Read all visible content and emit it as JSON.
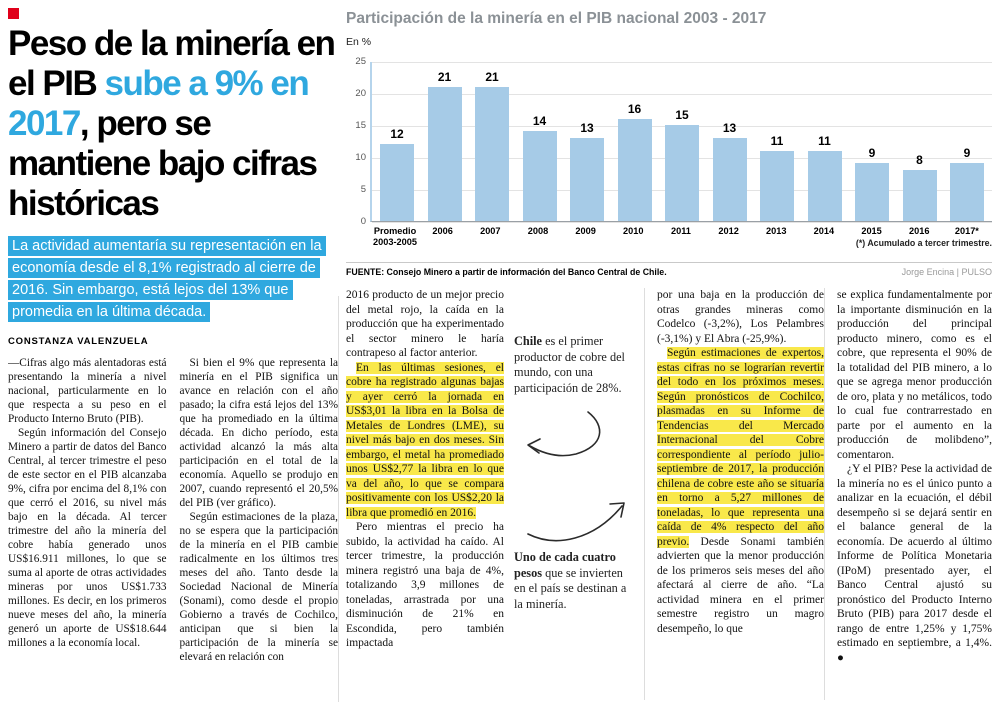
{
  "colors": {
    "accent_blue": "#2fa8df",
    "bar_blue": "#a6cbe7",
    "highlight_yellow": "#f9e84a",
    "logo_red": "#e0001a"
  },
  "headline": {
    "part1": "Peso de la minería en el PIB ",
    "part2": "sube a 9% en 2017",
    "part3": ", pero se mantiene bajo cifras históricas"
  },
  "subhead": "La actividad aumentaría su representación en la economía desde el 8,1% registrado al cierre de 2016. Sin embargo, está lejos del 13% que promedia en la última década.",
  "article": {
    "byline": "CONSTANZA VALENZUELA",
    "left_block": [
      {
        "indent": false,
        "segments": [
          {
            "text": "—Cifras algo más alentadoras está presentando la minería a nivel nacional, particularmente en lo que respecta a su peso en el Producto Interno Bruto (PIB).",
            "hl": false
          }
        ]
      },
      {
        "indent": true,
        "segments": [
          {
            "text": "Según información del Consejo Minero a partir de datos del Banco Central, al tercer trimestre el peso de este sector en el PIB alcanzaba 9%, cifra por encima del 8,1% con que cerró el 2016, su nivel más bajo en la década. Al tercer trimestre del año la minería del cobre había generado unos US$16.911 millones, lo que se suma al aporte de otras actividades mineras por unos US$1.733 millones. Es decir, en los primeros nueve meses del año, la minería generó un aporte de US$18.644 millones a la economía local.",
            "hl": false
          }
        ]
      },
      {
        "indent": true,
        "segments": [
          {
            "text": "Si bien el 9% que representa la minería en el PIB significa un avance en relación con el año pasado; la cifra está lejos del 13% que ha promediado en la última década. En dicho período, esta actividad alcanzó la más alta participación en el total de la economía. Aquello se produjo en 2007, cuando representó el 20,5% del PIB (ver gráfico).",
            "hl": false
          }
        ]
      },
      {
        "indent": true,
        "segments": [
          {
            "text": "Según estimaciones de la plaza, no se espera que la participación de la minería en el PIB cambie radicalmente en los últimos tres meses del año. Tanto desde la Sociedad Nacional de Minería (Sonami), como desde el propio Gobierno a través de Cochilco, anticipan que si bien la participación de la minería se elevará en relación con",
            "hl": false
          }
        ]
      }
    ],
    "col3": [
      {
        "indent": false,
        "segments": [
          {
            "text": "2016 producto de un mejor precio del metal rojo, la caída en la producción que ha experimentado el sector minero le haría contrapeso al factor anterior.",
            "hl": false
          }
        ]
      },
      {
        "indent": true,
        "segments": [
          {
            "text": "En las últimas sesiones, el cobre ha registrado algunas bajas y ayer cerró la jornada en US$3,01 la libra en la Bolsa de Metales de Londres (LME), su nivel más bajo en dos meses. Sin embargo, el metal ha promediado unos US$2,77 la libra en lo que va del año, lo que se compara positivamente con los US$2,20 la libra que promedió en 2016.",
            "hl": true
          }
        ]
      },
      {
        "indent": true,
        "segments": [
          {
            "text": "Pero mientras el precio ha subido, la actividad ha caído. Al tercer trimestre, la producción minera registró una baja de 4%, totalizando 3,9 millones de toneladas, arrastrada por una disminución de 21% en Escondida, pero también impactada",
            "hl": false
          }
        ]
      }
    ],
    "callouts": [
      {
        "lead": "Chile",
        "rest": " es el primer productor de cobre del mundo, con una participación de 28%."
      },
      {
        "lead": "Uno de cada cuatro pesos",
        "rest": " que se invierten en el país se destinan a la minería."
      }
    ],
    "col5": [
      {
        "indent": false,
        "segments": [
          {
            "text": "por una baja en la producción de otras grandes mineras como Codelco (-3,2%), Los Pelambres (-3,1%) y El Abra (-25,9%).",
            "hl": false
          }
        ]
      },
      {
        "indent": true,
        "segments": [
          {
            "text": "Según estimaciones de expertos, estas cifras no se lograrían revertir del todo en los próximos meses. Según pronósticos de Cochilco, plasmadas en su Informe de Tendencias del Mercado Internacional del Cobre correspondiente al período julio-septiembre de 2017, la producción chilena de cobre este año se situaría en torno a 5,27 millones de toneladas, lo que representa una caída de 4% respecto del año previo.",
            "hl": true
          },
          {
            "text": " Desde Sonami también advierten que la menor producción de los primeros seis meses del año afectará al cierre de año. “La actividad minera en el primer semestre registro un magro desempeño, lo que",
            "hl": false
          }
        ]
      }
    ],
    "col6": [
      {
        "indent": false,
        "segments": [
          {
            "text": "se explica fundamentalmente por la importante disminución en la producción del principal producto minero, como es el cobre, que representa el 90% de la totalidad del PIB minero, a lo que se agrega menor producción de oro, plata y no metálicos, todo lo cual fue contrarrestado en parte por el aumento en la producción de molibdeno”, comentaron.",
            "hl": false
          }
        ]
      },
      {
        "indent": true,
        "segments": [
          {
            "text": "¿Y el PIB? Pese la actividad de la minería no es el único punto a analizar en la ecuación, el débil desempeño si se dejará sentir en el balance general de la economía. De acuerdo al último Informe de Política Monetaria (IPoM) presentado ayer, el Banco Central ajustó su pronóstico del Producto Interno Bruto (PIB) para 2017 desde el rango de entre 1,25% y 1,75% estimado en septiembre, a 1,4%. ●",
            "hl": false
          }
        ]
      }
    ]
  },
  "chart_data": {
    "type": "bar",
    "title": "Participación de la minería en el PIB nacional 2003 - 2017",
    "unit_label": "En %",
    "categories": [
      "Promedio\n2003-2005",
      "2006",
      "2007",
      "2008",
      "2009",
      "2010",
      "2011",
      "2012",
      "2013",
      "2014",
      "2015",
      "2016",
      "2017*"
    ],
    "values": [
      12,
      21,
      21,
      14,
      13,
      16,
      15,
      13,
      11,
      11,
      9,
      8,
      9
    ],
    "ylim": [
      0,
      25
    ],
    "yticks": [
      0,
      5,
      10,
      15,
      20,
      25
    ],
    "grid": true,
    "legend": "none",
    "bar_color": "#a6cbe7",
    "footnote": "(*) Acumulado a tercer trimestre.",
    "source": "FUENTE: Consejo Minero a partir de información del Banco Central de Chile.",
    "credit": "Jorge Encina | PULSO"
  }
}
